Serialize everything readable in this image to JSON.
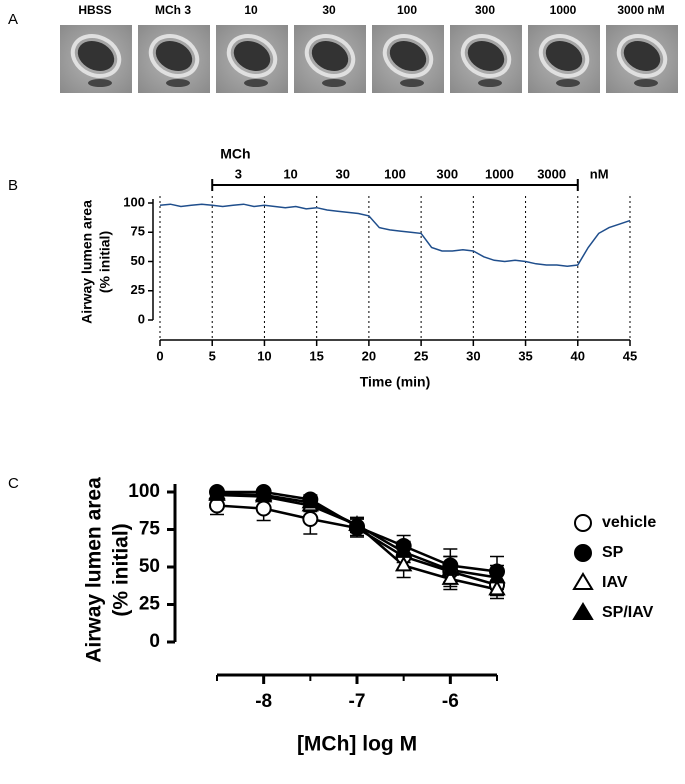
{
  "image_panel": {
    "panel_label": "A",
    "captions": [
      "HBSS",
      "MCh 3",
      "10",
      "30",
      "100",
      "300",
      "1000",
      "3000 nM"
    ]
  },
  "chart_data": [
    {
      "type": "line",
      "panel_label": "B",
      "ylabel": [
        "Airway lumen area",
        "(% initial)"
      ],
      "xlabel": "Time (min)",
      "annotations": {
        "title": "MCh",
        "doses": [
          "3",
          "10",
          "30",
          "100",
          "300",
          "1000",
          "3000"
        ],
        "unit": "nM"
      },
      "x": [
        0,
        1,
        2,
        3,
        4,
        5,
        6,
        7,
        8,
        9,
        10,
        11,
        12,
        13,
        14,
        15,
        16,
        17,
        18,
        19,
        20,
        21,
        22,
        23,
        24,
        25,
        26,
        27,
        28,
        29,
        30,
        31,
        32,
        33,
        34,
        35,
        36,
        37,
        38,
        39,
        40,
        41,
        42,
        43,
        44,
        45
      ],
      "values": [
        98,
        99,
        97,
        98,
        99,
        98,
        97,
        98,
        99,
        97,
        98,
        97,
        96,
        97,
        95,
        96,
        94,
        93,
        92,
        91,
        89,
        79,
        77,
        76,
        75,
        74,
        62,
        59,
        59,
        60,
        59,
        54,
        51,
        50,
        51,
        50,
        48,
        47,
        47,
        46,
        47,
        62,
        74,
        79,
        82,
        85
      ],
      "color": "#1f4e8c",
      "xlim": [
        0,
        45
      ],
      "xticks": [
        0,
        5,
        10,
        15,
        20,
        25,
        30,
        35,
        40,
        45
      ],
      "ylim": [
        0,
        100
      ],
      "yticks": [
        0,
        25,
        50,
        75,
        100
      ],
      "grid": "x-dotted"
    },
    {
      "type": "errorline",
      "panel_label": "C",
      "ylabel": [
        "Airway lumen area",
        "(% initial)"
      ],
      "xlabel": "[MCh] log M",
      "x": [
        -8.5,
        -8,
        -7.5,
        -7,
        -6.5,
        -6,
        -5.5
      ],
      "series": [
        {
          "name": "vehicle",
          "marker": "circle",
          "color": "#000000",
          "fill": "#ffffff",
          "values": [
            91,
            89,
            82,
            76,
            57,
            47,
            38
          ],
          "errors": [
            6,
            8,
            10,
            6,
            9,
            10,
            7
          ]
        },
        {
          "name": "SP",
          "marker": "circle",
          "color": "#000000",
          "fill": "#000000",
          "values": [
            100,
            100,
            95,
            77,
            64,
            51,
            47
          ],
          "errors": [
            2,
            2,
            3,
            6,
            7,
            11,
            10
          ]
        },
        {
          "name": "IAV",
          "marker": "triangle",
          "color": "#000000",
          "fill": "#ffffff",
          "values": [
            98,
            97,
            91,
            78,
            51,
            42,
            35
          ],
          "errors": [
            3,
            3,
            4,
            5,
            8,
            7,
            6
          ]
        },
        {
          "name": "SP/IAV",
          "marker": "triangle",
          "color": "#000000",
          "fill": "#000000",
          "values": [
            99,
            98,
            93,
            78,
            60,
            48,
            43
          ],
          "errors": [
            2,
            2,
            3,
            4,
            7,
            9,
            8
          ]
        }
      ],
      "xlim": [
        -8.5,
        -5.5
      ],
      "xticks": [
        -8,
        -7,
        -6
      ],
      "ylim": [
        0,
        100
      ],
      "yticks": [
        0,
        25,
        50,
        75,
        100
      ],
      "legend": "right"
    }
  ]
}
